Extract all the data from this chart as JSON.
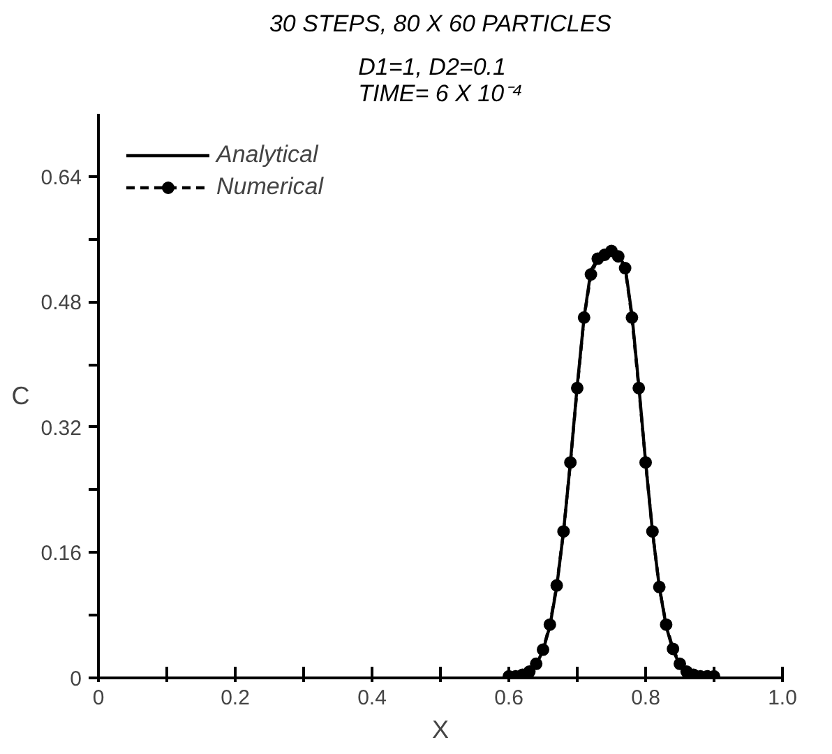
{
  "chart_data": {
    "type": "line",
    "title": "30 STEPS, 80 X 60 PARTICLES",
    "subtitle": "D1=1, D2=0.1\nTIME= 6 X 10⁻⁴",
    "xlabel": "X",
    "ylabel": "C",
    "x": [
      0.6,
      0.61,
      0.62,
      0.63,
      0.64,
      0.65,
      0.66,
      0.67,
      0.68,
      0.69,
      0.7,
      0.71,
      0.72,
      0.73,
      0.74,
      0.75,
      0.76,
      0.77,
      0.78,
      0.79,
      0.8,
      0.81,
      0.82,
      0.83,
      0.84,
      0.85,
      0.86,
      0.87,
      0.88,
      0.89,
      0.9
    ],
    "series": [
      {
        "name": "Analytical",
        "color": "#000000",
        "line_style": "solid",
        "marker": "none",
        "values": [
          0.001,
          0.001,
          0.003,
          0.007,
          0.017,
          0.035,
          0.066,
          0.116,
          0.187,
          0.275,
          0.373,
          0.46,
          0.52,
          0.535,
          0.54,
          0.545,
          0.54,
          0.525,
          0.463,
          0.373,
          0.275,
          0.187,
          0.116,
          0.066,
          0.035,
          0.017,
          0.007,
          0.003,
          0.001,
          0.001,
          0.0
        ]
      },
      {
        "name": "Numerical",
        "color": "#000000",
        "line_style": "dashed",
        "marker": "circle",
        "values": [
          0.002,
          0.002,
          0.004,
          0.008,
          0.018,
          0.036,
          0.068,
          0.118,
          0.187,
          0.275,
          0.37,
          0.46,
          0.515,
          0.535,
          0.54,
          0.545,
          0.538,
          0.523,
          0.46,
          0.37,
          0.275,
          0.187,
          0.116,
          0.068,
          0.037,
          0.018,
          0.008,
          0.004,
          0.002,
          0.002,
          0.002
        ]
      }
    ],
    "xlim": [
      0,
      1.0
    ],
    "ylim": [
      0,
      0.72
    ],
    "xticks": [
      0,
      {
        "value": 0.1,
        "label": null
      },
      0.2,
      {
        "value": 0.3,
        "label": null
      },
      0.4,
      {
        "value": 0.5,
        "label": null
      },
      0.6,
      {
        "value": 0.7,
        "label": null
      },
      0.8,
      {
        "value": 0.9,
        "label": null
      },
      {
        "value": 1.0,
        "label": "1.0"
      }
    ],
    "yticks": [
      0,
      {
        "value": 0.08,
        "label": null
      },
      0.16,
      {
        "value": 0.24,
        "label": null
      },
      0.32,
      {
        "value": 0.4,
        "label": null
      },
      0.48,
      {
        "value": 0.56,
        "label": null
      },
      0.64
    ],
    "grid": false,
    "legend": "top left"
  }
}
